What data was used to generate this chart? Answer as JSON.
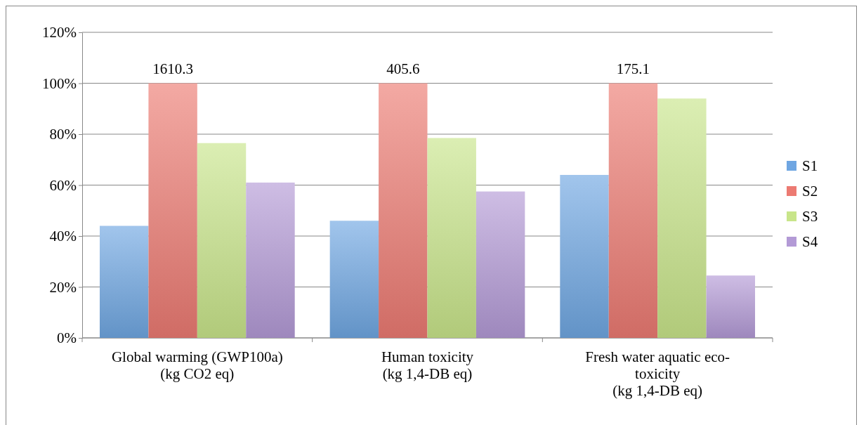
{
  "chart_data": {
    "type": "bar",
    "categories": [
      "Global warming (GWP100a)\n(kg CO2 eq)",
      "Human toxicity\n(kg 1,4-DB eq)",
      "Fresh water aquatic eco-\ntoxicity\n(kg 1,4-DB eq)"
    ],
    "series": [
      {
        "name": "S1",
        "color": "#6fa6e2",
        "values": [
          44,
          46,
          64
        ]
      },
      {
        "name": "S2",
        "color": "#ec7a72",
        "values": [
          100,
          100,
          100
        ]
      },
      {
        "name": "S3",
        "color": "#c8e58a",
        "values": [
          76.5,
          78.5,
          94
        ]
      },
      {
        "name": "S4",
        "color": "#b39ad6",
        "values": [
          61,
          57.5,
          24.5
        ]
      }
    ],
    "ylim": [
      0,
      120
    ],
    "yticks": [
      {
        "value": 0,
        "label": "0%"
      },
      {
        "value": 20,
        "label": "20%"
      },
      {
        "value": 40,
        "label": "40%"
      },
      {
        "value": 60,
        "label": "60%"
      },
      {
        "value": 80,
        "label": "80%"
      },
      {
        "value": 100,
        "label": "100%"
      },
      {
        "value": 120,
        "label": "120%"
      }
    ],
    "grid": "y",
    "legend": "right",
    "annotations": [
      {
        "text": "1610.3",
        "x": "Global warming (GWP100a)\n(kg CO2 eq)",
        "y": 100
      },
      {
        "text": "405.6",
        "x": "Human toxicity\n(kg 1,4-DB eq)",
        "y": 100
      },
      {
        "text": "175.1",
        "x": "Fresh water aquatic eco-\ntoxicity\n(kg 1,4-DB eq)",
        "y": 100
      }
    ]
  }
}
